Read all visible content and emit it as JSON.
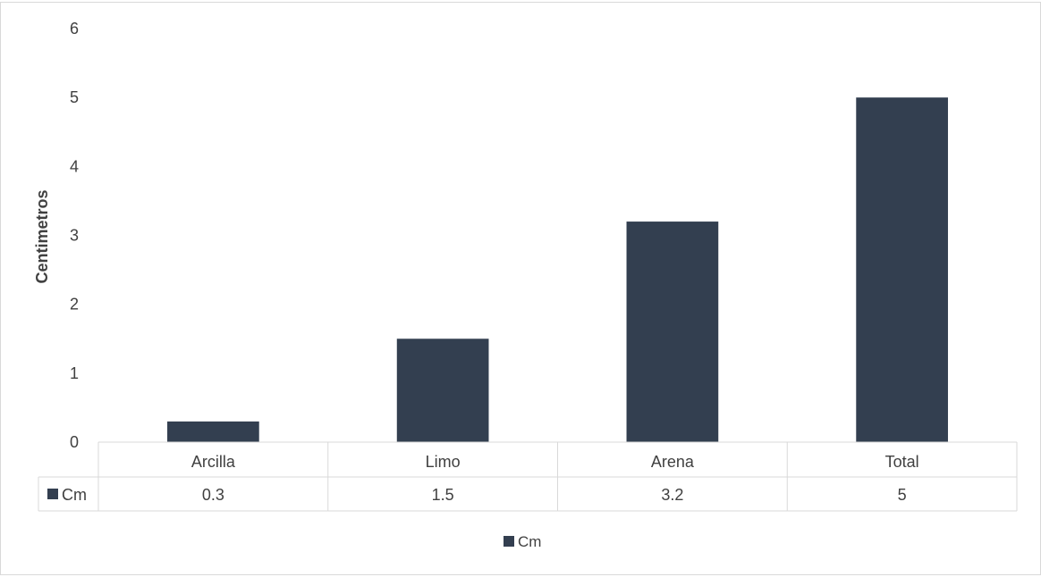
{
  "chart_data": {
    "type": "bar",
    "title": "",
    "xlabel": "",
    "ylabel": "Centimetros",
    "ylim": [
      0,
      6
    ],
    "yticks": [
      0,
      1,
      2,
      3,
      4,
      5,
      6
    ],
    "categories": [
      "Arcilla",
      "Limo",
      "Arena",
      "Total"
    ],
    "series": [
      {
        "name": "Cm",
        "values": [
          0.3,
          1.5,
          3.2,
          5
        ],
        "value_labels": [
          "0.3",
          "1.5",
          "3.2",
          "5"
        ],
        "color": "#333f50"
      }
    ],
    "grid": false,
    "data_table": true,
    "legend": "bottom"
  }
}
